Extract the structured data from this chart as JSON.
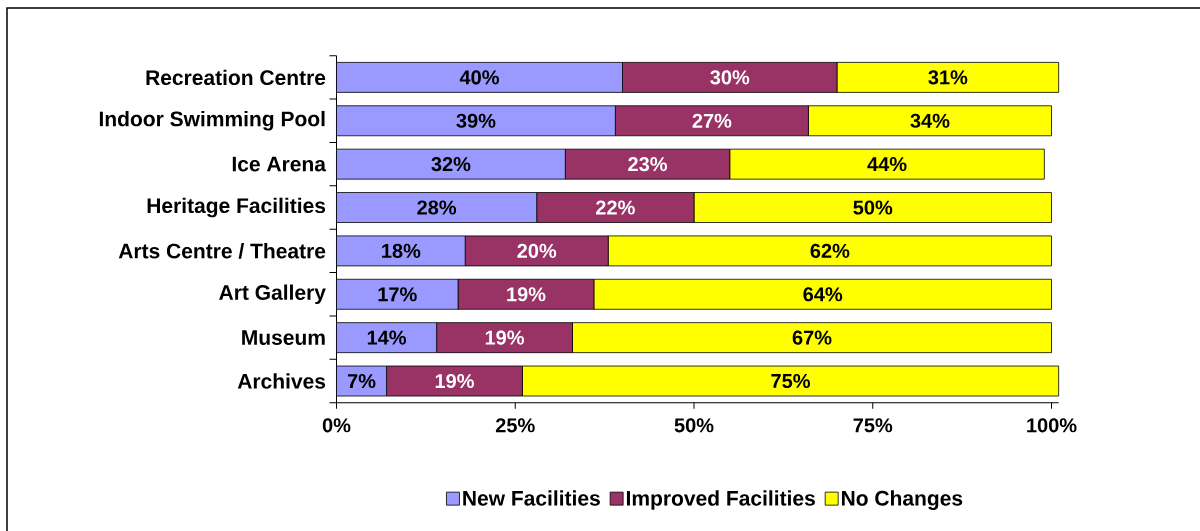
{
  "chart_data": {
    "type": "bar",
    "orientation": "horizontal",
    "stacked": true,
    "categories": [
      "Recreation Centre",
      "Indoor Swimming Pool",
      "Ice Arena",
      "Heritage Facilities",
      "Arts Centre / Theatre",
      "Art Gallery",
      "Museum",
      "Archives"
    ],
    "series": [
      {
        "name": "New Facilities",
        "color": "#9999ff",
        "values": [
          40,
          39,
          32,
          28,
          18,
          17,
          14,
          7
        ],
        "value_labels": [
          "40%",
          "39%",
          "32%",
          "28%",
          "18%",
          "17%",
          "14%",
          "7%"
        ]
      },
      {
        "name": "Improved Facilities",
        "color": "#993366",
        "values": [
          30,
          27,
          23,
          22,
          20,
          19,
          19,
          19
        ],
        "value_labels": [
          "30%",
          "27%",
          "23%",
          "22%",
          "20%",
          "19%",
          "19%",
          "19%"
        ]
      },
      {
        "name": "No Changes",
        "color": "#ffff00",
        "values": [
          31,
          34,
          44,
          50,
          62,
          64,
          67,
          75
        ],
        "value_labels": [
          "31%",
          "34%",
          "44%",
          "50%",
          "62%",
          "64%",
          "67%",
          "75%"
        ]
      }
    ],
    "xlim": [
      0,
      101
    ],
    "xticks": [
      {
        "value": 0,
        "label": "0%"
      },
      {
        "value": 25,
        "label": "25%"
      },
      {
        "value": 50,
        "label": "50%"
      },
      {
        "value": 75,
        "label": "75%"
      },
      {
        "value": 100,
        "label": "100%"
      }
    ],
    "legend": "bottom"
  }
}
